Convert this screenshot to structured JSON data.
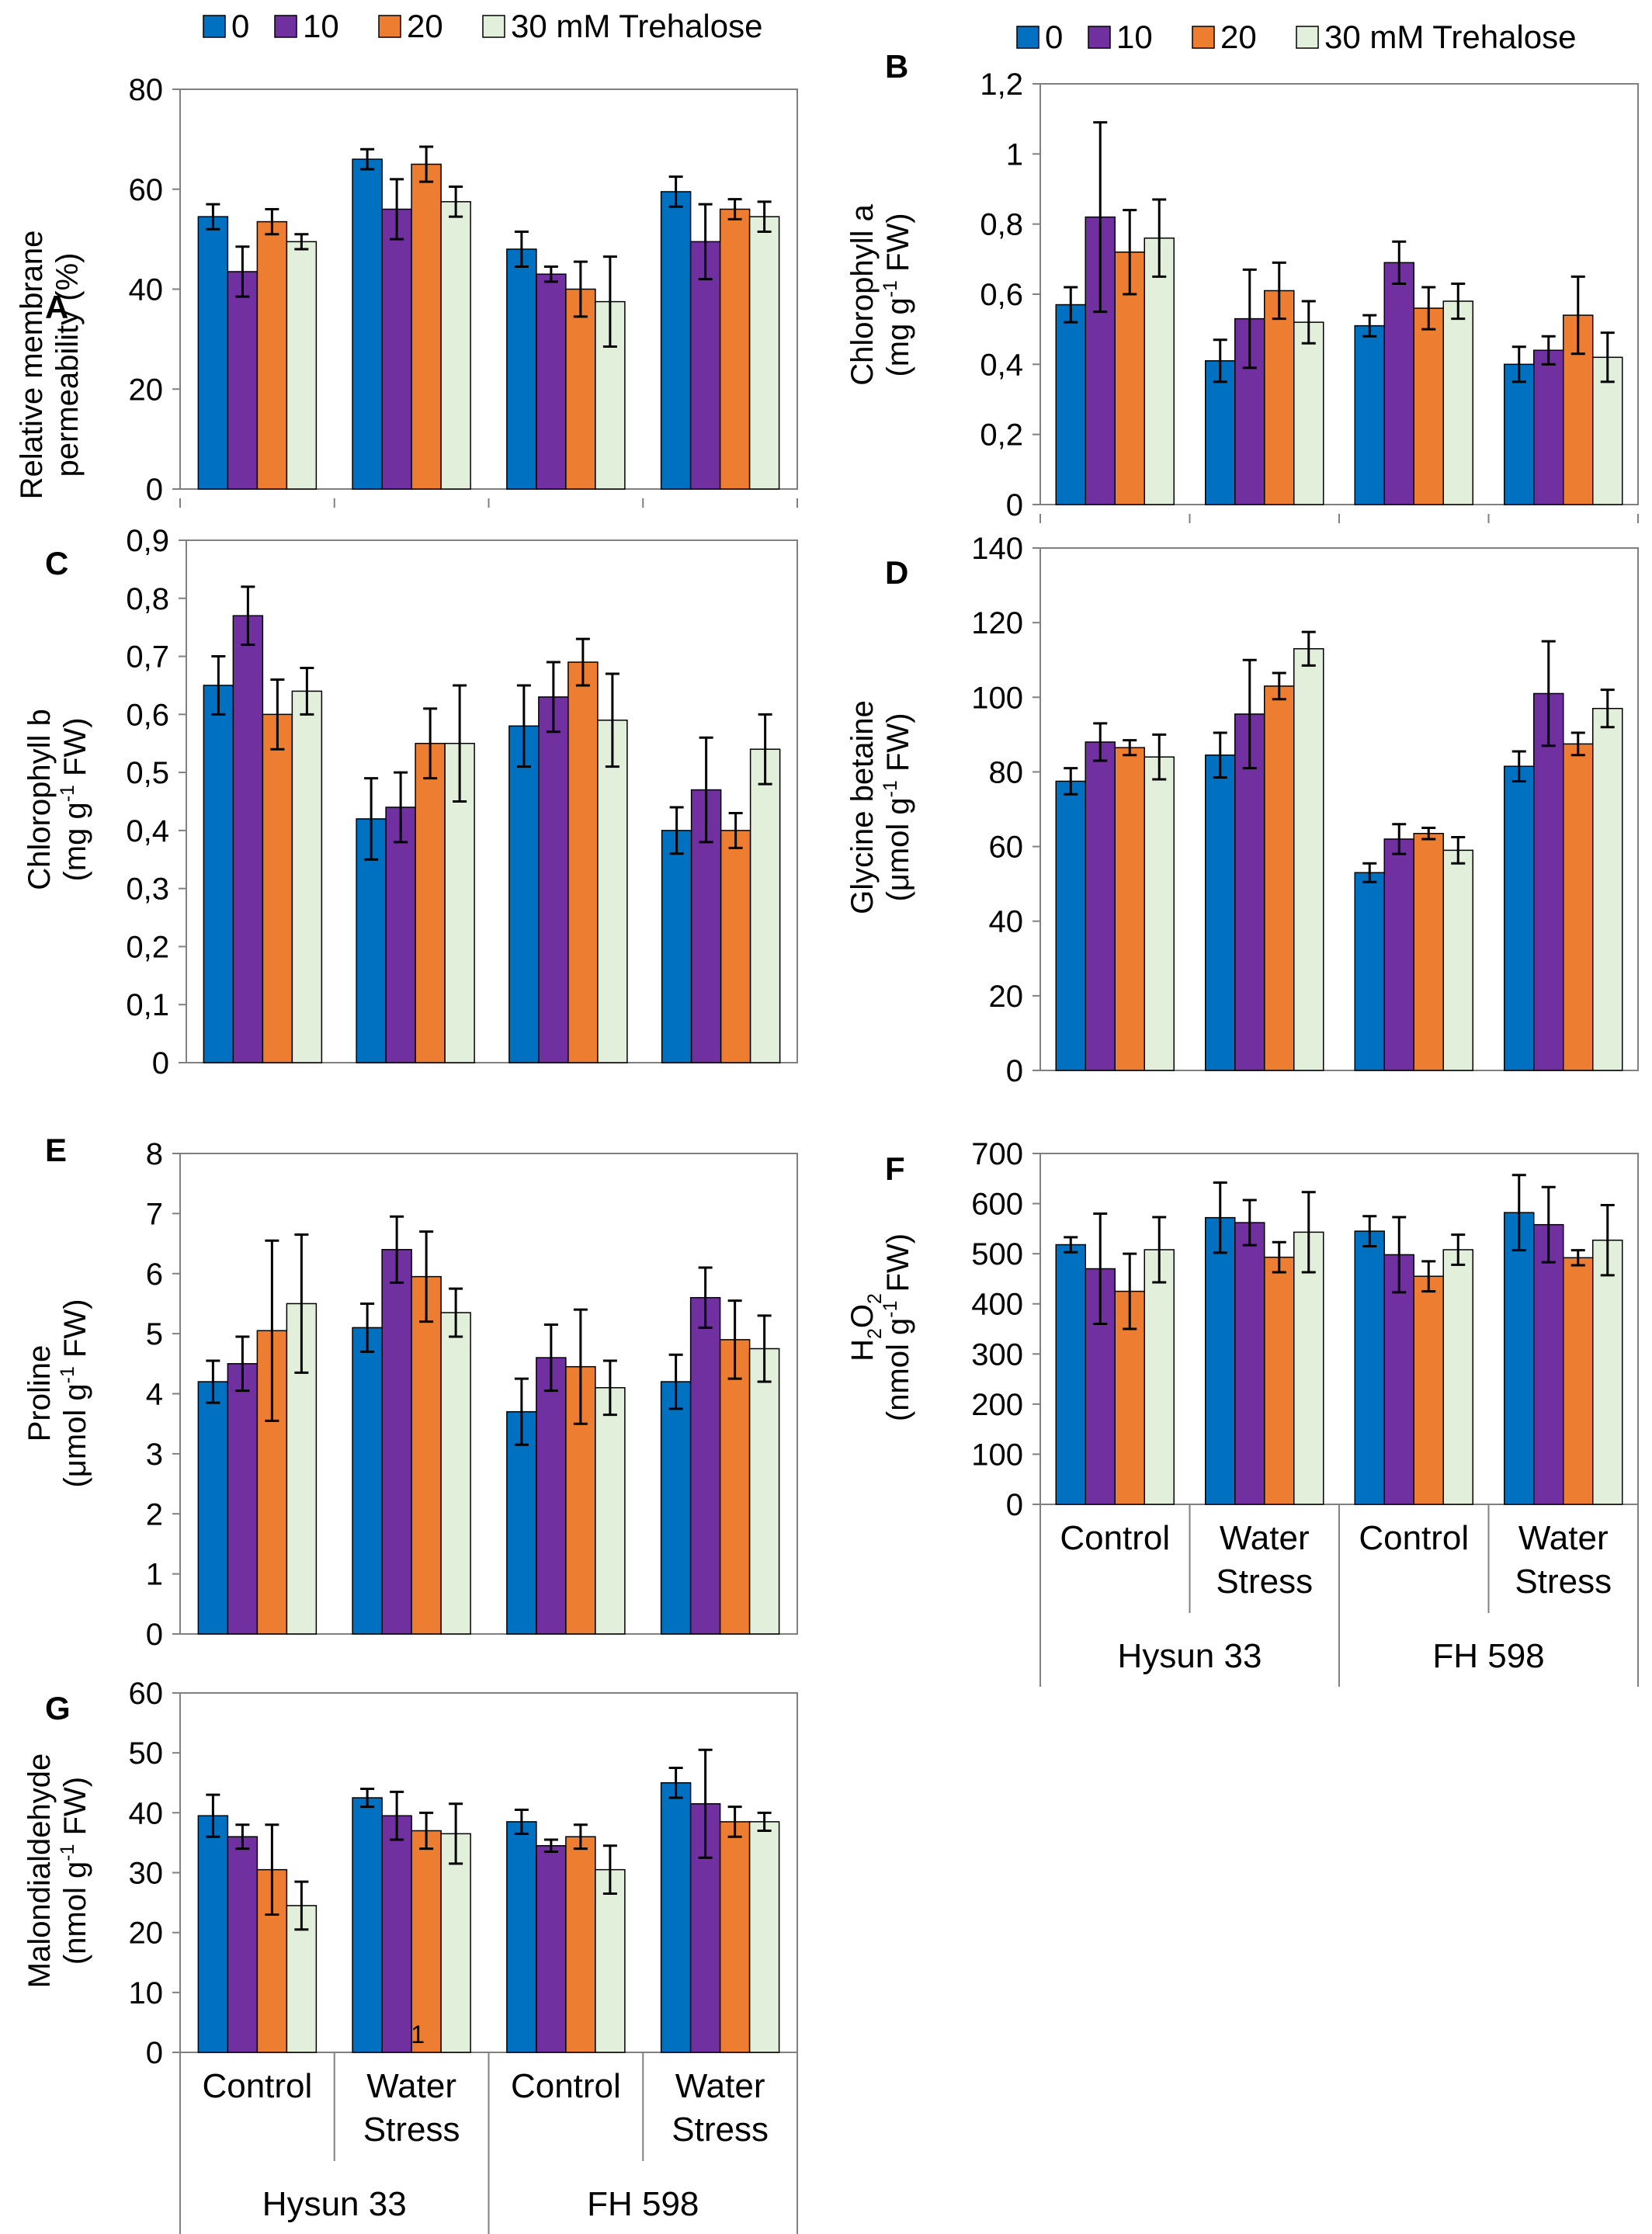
{
  "legend": {
    "items": [
      "0",
      "10",
      "20",
      "30 mM Trehalose"
    ],
    "colors": [
      "#0070c0",
      "#7030a0",
      "#ed7d31",
      "#e2efda"
    ]
  },
  "x_groups": {
    "treatments": [
      "Control",
      "Water|Stress",
      "Control",
      "Water|Stress"
    ],
    "cultivars": [
      "Hysun 33",
      "FH 598"
    ]
  },
  "chart_data": [
    {
      "panel": "A",
      "type": "bar",
      "ylabel_lines": [
        "Relative membrane",
        "permeability (%)"
      ],
      "ylim": [
        0,
        80
      ],
      "yticks": [
        "0",
        "20",
        "40",
        "60",
        "80"
      ],
      "groups": [
        {
          "values": [
            54.5,
            43.5,
            53.5,
            49.5
          ],
          "errors": [
            2.5,
            5,
            2.5,
            1.5
          ]
        },
        {
          "values": [
            66,
            56,
            65,
            57.5
          ],
          "errors": [
            2,
            6,
            3.5,
            3
          ]
        },
        {
          "values": [
            48,
            43,
            40,
            37.5
          ],
          "errors": [
            3.5,
            1.5,
            5.5,
            9
          ]
        },
        {
          "values": [
            59.5,
            49.5,
            56,
            54.5
          ],
          "errors": [
            3,
            7.5,
            2,
            3
          ]
        }
      ]
    },
    {
      "panel": "B",
      "type": "bar",
      "ylabel_lines": [
        "Chlorophyll a",
        "(mg g{-1} FW)"
      ],
      "ylim": [
        0,
        1.2
      ],
      "yticks": [
        "0",
        "0,2",
        "0,4",
        "0,6",
        "0,8",
        "1",
        "1,2"
      ],
      "groups": [
        {
          "values": [
            0.57,
            0.82,
            0.72,
            0.76
          ],
          "errors": [
            0.05,
            0.27,
            0.12,
            0.11
          ]
        },
        {
          "values": [
            0.41,
            0.53,
            0.61,
            0.52
          ],
          "errors": [
            0.06,
            0.14,
            0.08,
            0.06
          ]
        },
        {
          "values": [
            0.51,
            0.69,
            0.56,
            0.58
          ],
          "errors": [
            0.03,
            0.06,
            0.06,
            0.05
          ]
        },
        {
          "values": [
            0.4,
            0.44,
            0.54,
            0.42
          ],
          "errors": [
            0.05,
            0.04,
            0.11,
            0.07
          ]
        }
      ]
    },
    {
      "panel": "C",
      "type": "bar",
      "ylabel_lines": [
        "Chlorophyll b",
        "(mg g{-1} FW)"
      ],
      "ylim": [
        0,
        0.9
      ],
      "yticks": [
        "0",
        "0,1",
        "0,2",
        "0,3",
        "0,4",
        "0,5",
        "0,6",
        "0,7",
        "0,8",
        "0,9"
      ],
      "groups": [
        {
          "values": [
            0.65,
            0.77,
            0.6,
            0.64
          ],
          "errors": [
            0.05,
            0.05,
            0.06,
            0.04
          ]
        },
        {
          "values": [
            0.42,
            0.44,
            0.55,
            0.55
          ],
          "errors": [
            0.07,
            0.06,
            0.06,
            0.1
          ]
        },
        {
          "values": [
            0.58,
            0.63,
            0.69,
            0.59
          ],
          "errors": [
            0.07,
            0.06,
            0.04,
            0.08
          ]
        },
        {
          "values": [
            0.4,
            0.47,
            0.4,
            0.54
          ],
          "errors": [
            0.04,
            0.09,
            0.03,
            0.06
          ]
        }
      ]
    },
    {
      "panel": "D",
      "type": "bar",
      "ylabel_lines": [
        "Glycine betaine",
        "(μmol g{-1} FW)"
      ],
      "ylim": [
        0,
        140
      ],
      "yticks": [
        "0",
        "20",
        "40",
        "60",
        "80",
        "100",
        "120",
        "140"
      ],
      "groups": [
        {
          "values": [
            77.5,
            88,
            86.5,
            84
          ],
          "errors": [
            3.5,
            5,
            2,
            6
          ]
        },
        {
          "values": [
            84.5,
            95.5,
            103,
            113
          ],
          "errors": [
            6,
            14.5,
            3.5,
            4.5
          ]
        },
        {
          "values": [
            53,
            62,
            63.5,
            59
          ],
          "errors": [
            2.5,
            4,
            1.5,
            3.5
          ]
        },
        {
          "values": [
            81.5,
            101,
            87.5,
            97
          ],
          "errors": [
            4,
            14,
            3,
            5
          ]
        }
      ]
    },
    {
      "panel": "E",
      "type": "bar",
      "ylabel_lines": [
        "Proline",
        "(μmol g{-1} FW)"
      ],
      "ylim": [
        0,
        8
      ],
      "yticks": [
        "0",
        "1",
        "2",
        "3",
        "4",
        "5",
        "6",
        "7",
        "8"
      ],
      "groups": [
        {
          "values": [
            4.2,
            4.5,
            5.05,
            5.5
          ],
          "errors": [
            0.35,
            0.45,
            1.5,
            1.15
          ]
        },
        {
          "values": [
            5.1,
            6.4,
            5.95,
            5.35
          ],
          "errors": [
            0.4,
            0.55,
            0.75,
            0.4
          ]
        },
        {
          "values": [
            3.7,
            4.6,
            4.45,
            4.1
          ],
          "errors": [
            0.55,
            0.55,
            0.95,
            0.45
          ]
        },
        {
          "values": [
            4.2,
            5.6,
            4.9,
            4.75
          ],
          "errors": [
            0.45,
            0.5,
            0.65,
            0.55
          ]
        }
      ]
    },
    {
      "panel": "F",
      "type": "bar",
      "ylabel_lines": [
        "H{2}O{2}",
        "(nmol g{-1} FW)"
      ],
      "ylim": [
        0,
        700
      ],
      "yticks": [
        "0",
        "100",
        "200",
        "300",
        "400",
        "500",
        "600",
        "700"
      ],
      "groups": [
        {
          "values": [
            518,
            470,
            425,
            508
          ],
          "errors": [
            15,
            110,
            75,
            65
          ]
        },
        {
          "values": [
            572,
            562,
            493,
            543
          ],
          "errors": [
            70,
            45,
            30,
            80
          ]
        },
        {
          "values": [
            545,
            498,
            455,
            508
          ],
          "errors": [
            30,
            75,
            30,
            30
          ]
        },
        {
          "values": [
            582,
            558,
            492,
            527
          ],
          "errors": [
            75,
            75,
            15,
            70
          ]
        }
      ]
    },
    {
      "panel": "G",
      "type": "bar",
      "ylabel_lines": [
        "Malondialdehyde",
        "(nmol g{-1} FW)"
      ],
      "ylim": [
        0,
        60
      ],
      "yticks": [
        "0",
        "10",
        "20",
        "30",
        "40",
        "50",
        "60"
      ],
      "groups": [
        {
          "values": [
            39.5,
            36,
            30.5,
            24.5
          ],
          "errors": [
            3.5,
            2,
            7.5,
            4
          ]
        },
        {
          "values": [
            42.5,
            39.5,
            37,
            36.5
          ],
          "errors": [
            1.5,
            4,
            3,
            5
          ]
        },
        {
          "values": [
            38.5,
            34.5,
            36,
            30.5
          ],
          "errors": [
            2,
            1,
            2,
            4
          ]
        },
        {
          "values": [
            45,
            41.5,
            38.5,
            38.5
          ],
          "errors": [
            2.5,
            9,
            2.5,
            1.5
          ]
        }
      ],
      "annotations": [
        "1"
      ]
    }
  ]
}
